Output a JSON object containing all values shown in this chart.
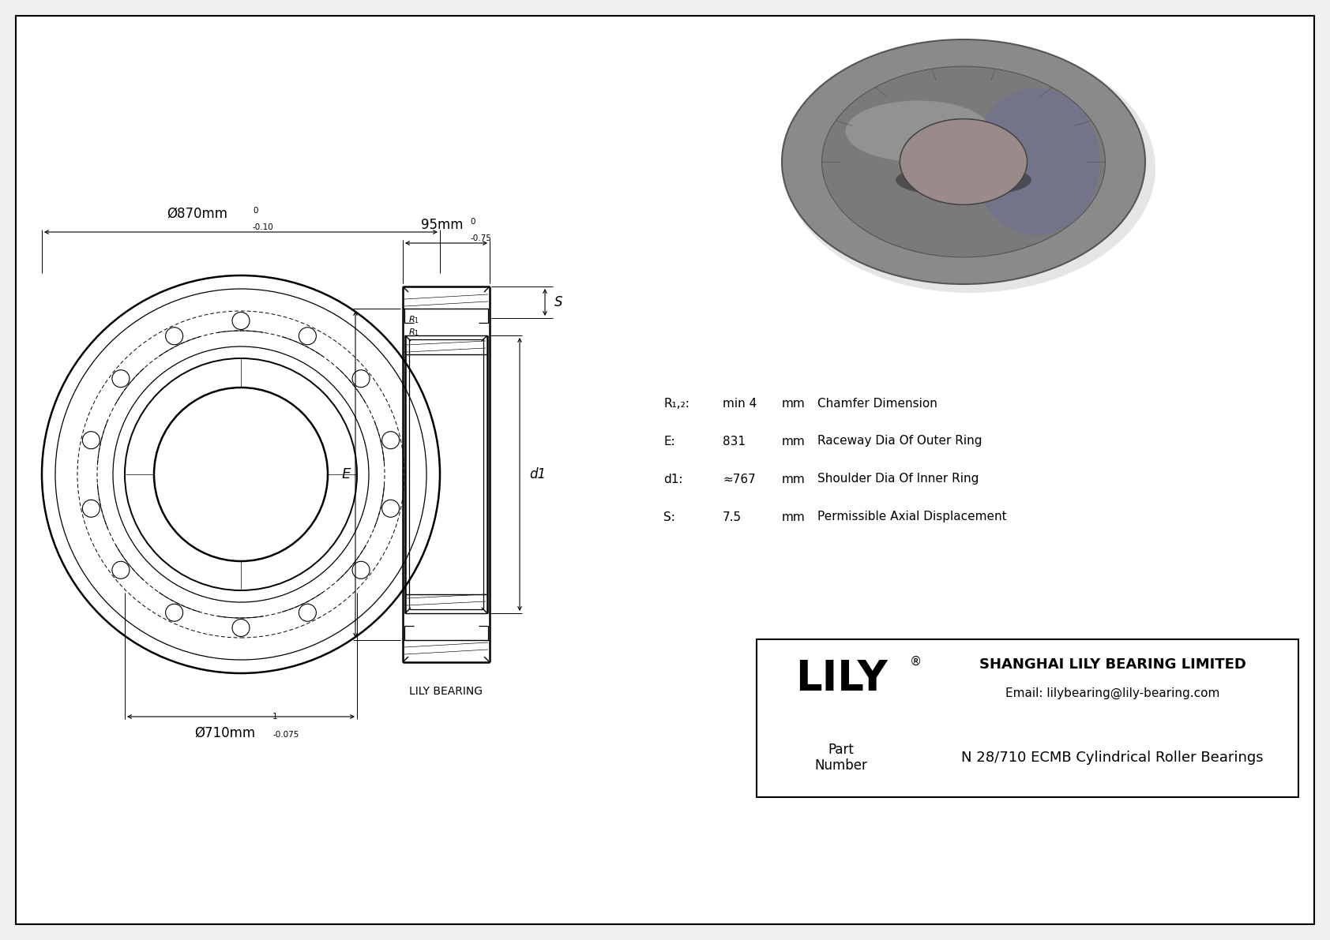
{
  "bg_color": "#f0f0f0",
  "drawing_bg": "#ffffff",
  "line_color": "#000000",
  "outer_diameter_label": "Ø870mm",
  "outer_tolerance_upper": "0",
  "outer_tolerance_lower": "-0.10",
  "inner_diameter_label": "Ø710mm",
  "inner_tolerance_upper": "1",
  "inner_tolerance_lower": "-0.075",
  "width_label": "95mm",
  "width_tolerance_upper": "0",
  "width_tolerance_lower": "-0.75",
  "dim_E_label": "E",
  "dim_d1_label": "d1",
  "dim_S_label": "S",
  "dim_R1_label": "R₁",
  "specs": [
    {
      "symbol": "R₁,₂:",
      "value": "min 4",
      "unit": "mm",
      "desc": "Chamfer Dimension"
    },
    {
      "symbol": "E:",
      "value": "831",
      "unit": "mm",
      "desc": "Raceway Dia Of Outer Ring"
    },
    {
      "symbol": "d1:",
      "value": "≈767",
      "unit": "mm",
      "desc": "Shoulder Dia Of Inner Ring"
    },
    {
      "symbol": "S:",
      "value": "7.5",
      "unit": "mm",
      "desc": "Permissible Axial Displacement"
    }
  ],
  "company_name": "SHANGHAI LILY BEARING LIMITED",
  "company_email": "Email: lilybearing@lily-bearing.com",
  "brand_name": "LILY",
  "part_number_label": "Part\nNumber",
  "part_number": "N 28/710 ECMB Cylindrical Roller Bearings",
  "lily_bearing_label": "LILY BEARING"
}
